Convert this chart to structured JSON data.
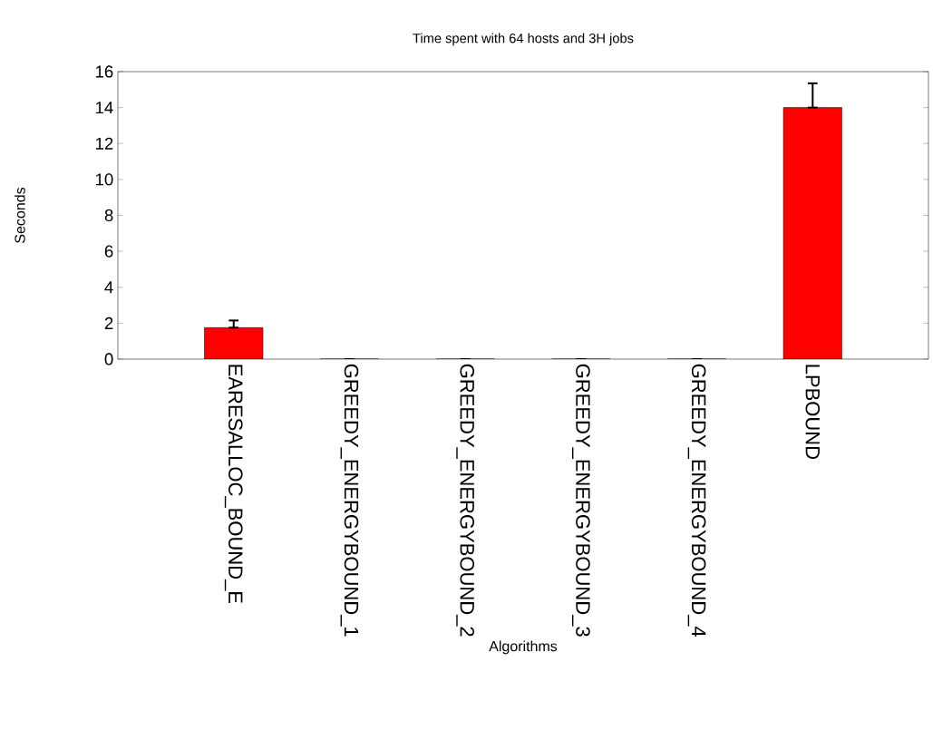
{
  "chart_data": {
    "type": "bar",
    "title": "Time spent with 64 hosts and 3H jobs",
    "xlabel": "Algorithms",
    "ylabel": "Seconds",
    "categories": [
      "EARESALLOC_BOUND_E",
      "GREEDY_ENERGYBOUND_1",
      "GREEDY_ENERGYBOUND_2",
      "GREEDY_ENERGYBOUND_3",
      "GREEDY_ENERGYBOUND_4",
      "LPBOUND"
    ],
    "values": [
      1.75,
      0,
      0,
      0,
      0,
      14
    ],
    "errors": [
      [
        1.75,
        2.15
      ],
      null,
      null,
      null,
      null,
      [
        14,
        15.35
      ]
    ],
    "color": "#ff0000",
    "ylim": [
      0,
      16
    ],
    "yticks": [
      0,
      2,
      4,
      6,
      8,
      10,
      12,
      14,
      16
    ],
    "grid": false
  }
}
